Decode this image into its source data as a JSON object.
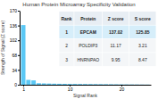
{
  "chart_data": {
    "type": "bar",
    "title": "Human Protein Microarray Specificity Validation",
    "xlabel": "Signal Rank",
    "ylabel": "Strength of Signal (Z score)",
    "x": [
      1,
      2,
      3,
      4,
      5,
      6,
      7,
      8,
      9,
      10,
      11,
      12,
      13,
      14,
      15,
      16,
      17,
      18,
      19,
      20,
      21,
      22,
      23,
      24,
      25
    ],
    "values": [
      137.02,
      11.17,
      9.95,
      3.5,
      3.0,
      2.7,
      2.4,
      2.2,
      2.0,
      1.9,
      1.8,
      1.7,
      1.6,
      1.5,
      1.4,
      1.3,
      1.2,
      1.1,
      1.0,
      0.9,
      0.8,
      0.7,
      0.6,
      0.5,
      0.4
    ],
    "color": "#5bc8f5",
    "xlim": [
      0.3,
      25.7
    ],
    "xticks": [
      1,
      10,
      20
    ],
    "ylim": [
      0,
      170
    ],
    "yticks": [
      0,
      34,
      68,
      102,
      136,
      170
    ],
    "table_headers": [
      "Rank",
      "Protein",
      "Z score",
      "S score"
    ],
    "table_rows": [
      [
        "1",
        "EPCAM",
        "137.02",
        "125.85"
      ],
      [
        "2",
        "POLDIP3",
        "11.17",
        "3.21"
      ],
      [
        "3",
        "HNRNPAO",
        "9.95",
        "8.47"
      ]
    ]
  }
}
